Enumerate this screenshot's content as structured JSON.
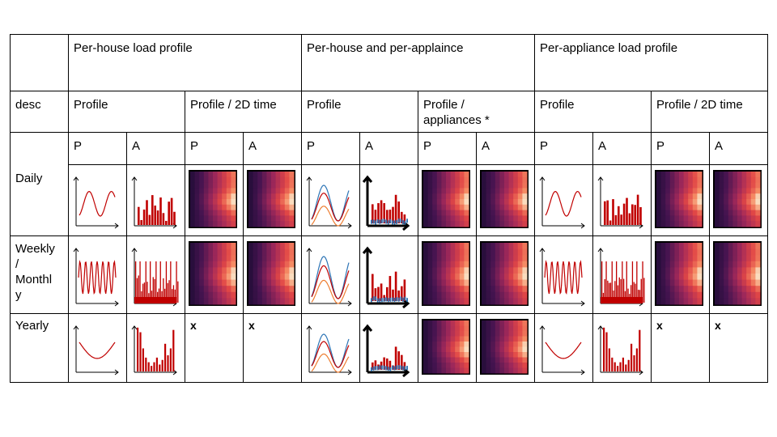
{
  "top_headers": [
    "Per-house load profile",
    "Per-house and per-applaince",
    "Per-appliance load profile"
  ],
  "desc_label": "desc",
  "sub_headers": [
    "Profile",
    "Profile / 2D time",
    "Profile",
    "Profile /\nappliances *",
    "Profile",
    "Profile / 2D time"
  ],
  "pa_labels": [
    "P",
    "A",
    "P",
    "A",
    "P",
    "A",
    "P",
    "A",
    "P",
    "A",
    "P",
    "A"
  ],
  "rows": [
    {
      "label": "Daily",
      "cells": [
        "wave",
        "bars",
        "heatmap",
        "heatmap",
        "multi-wave",
        "multi-bars",
        "heatmap",
        "heatmap",
        "wave",
        "bars",
        "heatmap",
        "heatmap"
      ]
    },
    {
      "label": "Weekly\n/\nMonthl\ny",
      "cells": [
        "osc",
        "dense-bars",
        "heatmap",
        "heatmap",
        "multi-wave",
        "multi-bars",
        "heatmap",
        "heatmap",
        "osc",
        "dense-bars",
        "heatmap",
        "heatmap"
      ]
    },
    {
      "label": "Yearly",
      "cells": [
        "u-curve",
        "sparse-bars",
        "x",
        "x",
        "multi-wave",
        "multi-bars",
        "heatmap",
        "heatmap",
        "u-curve",
        "sparse-bars",
        "x",
        "x"
      ]
    }
  ],
  "colors": {
    "red": "#c00000",
    "blue": "#2e75b6",
    "orange": "#ed7d31"
  }
}
